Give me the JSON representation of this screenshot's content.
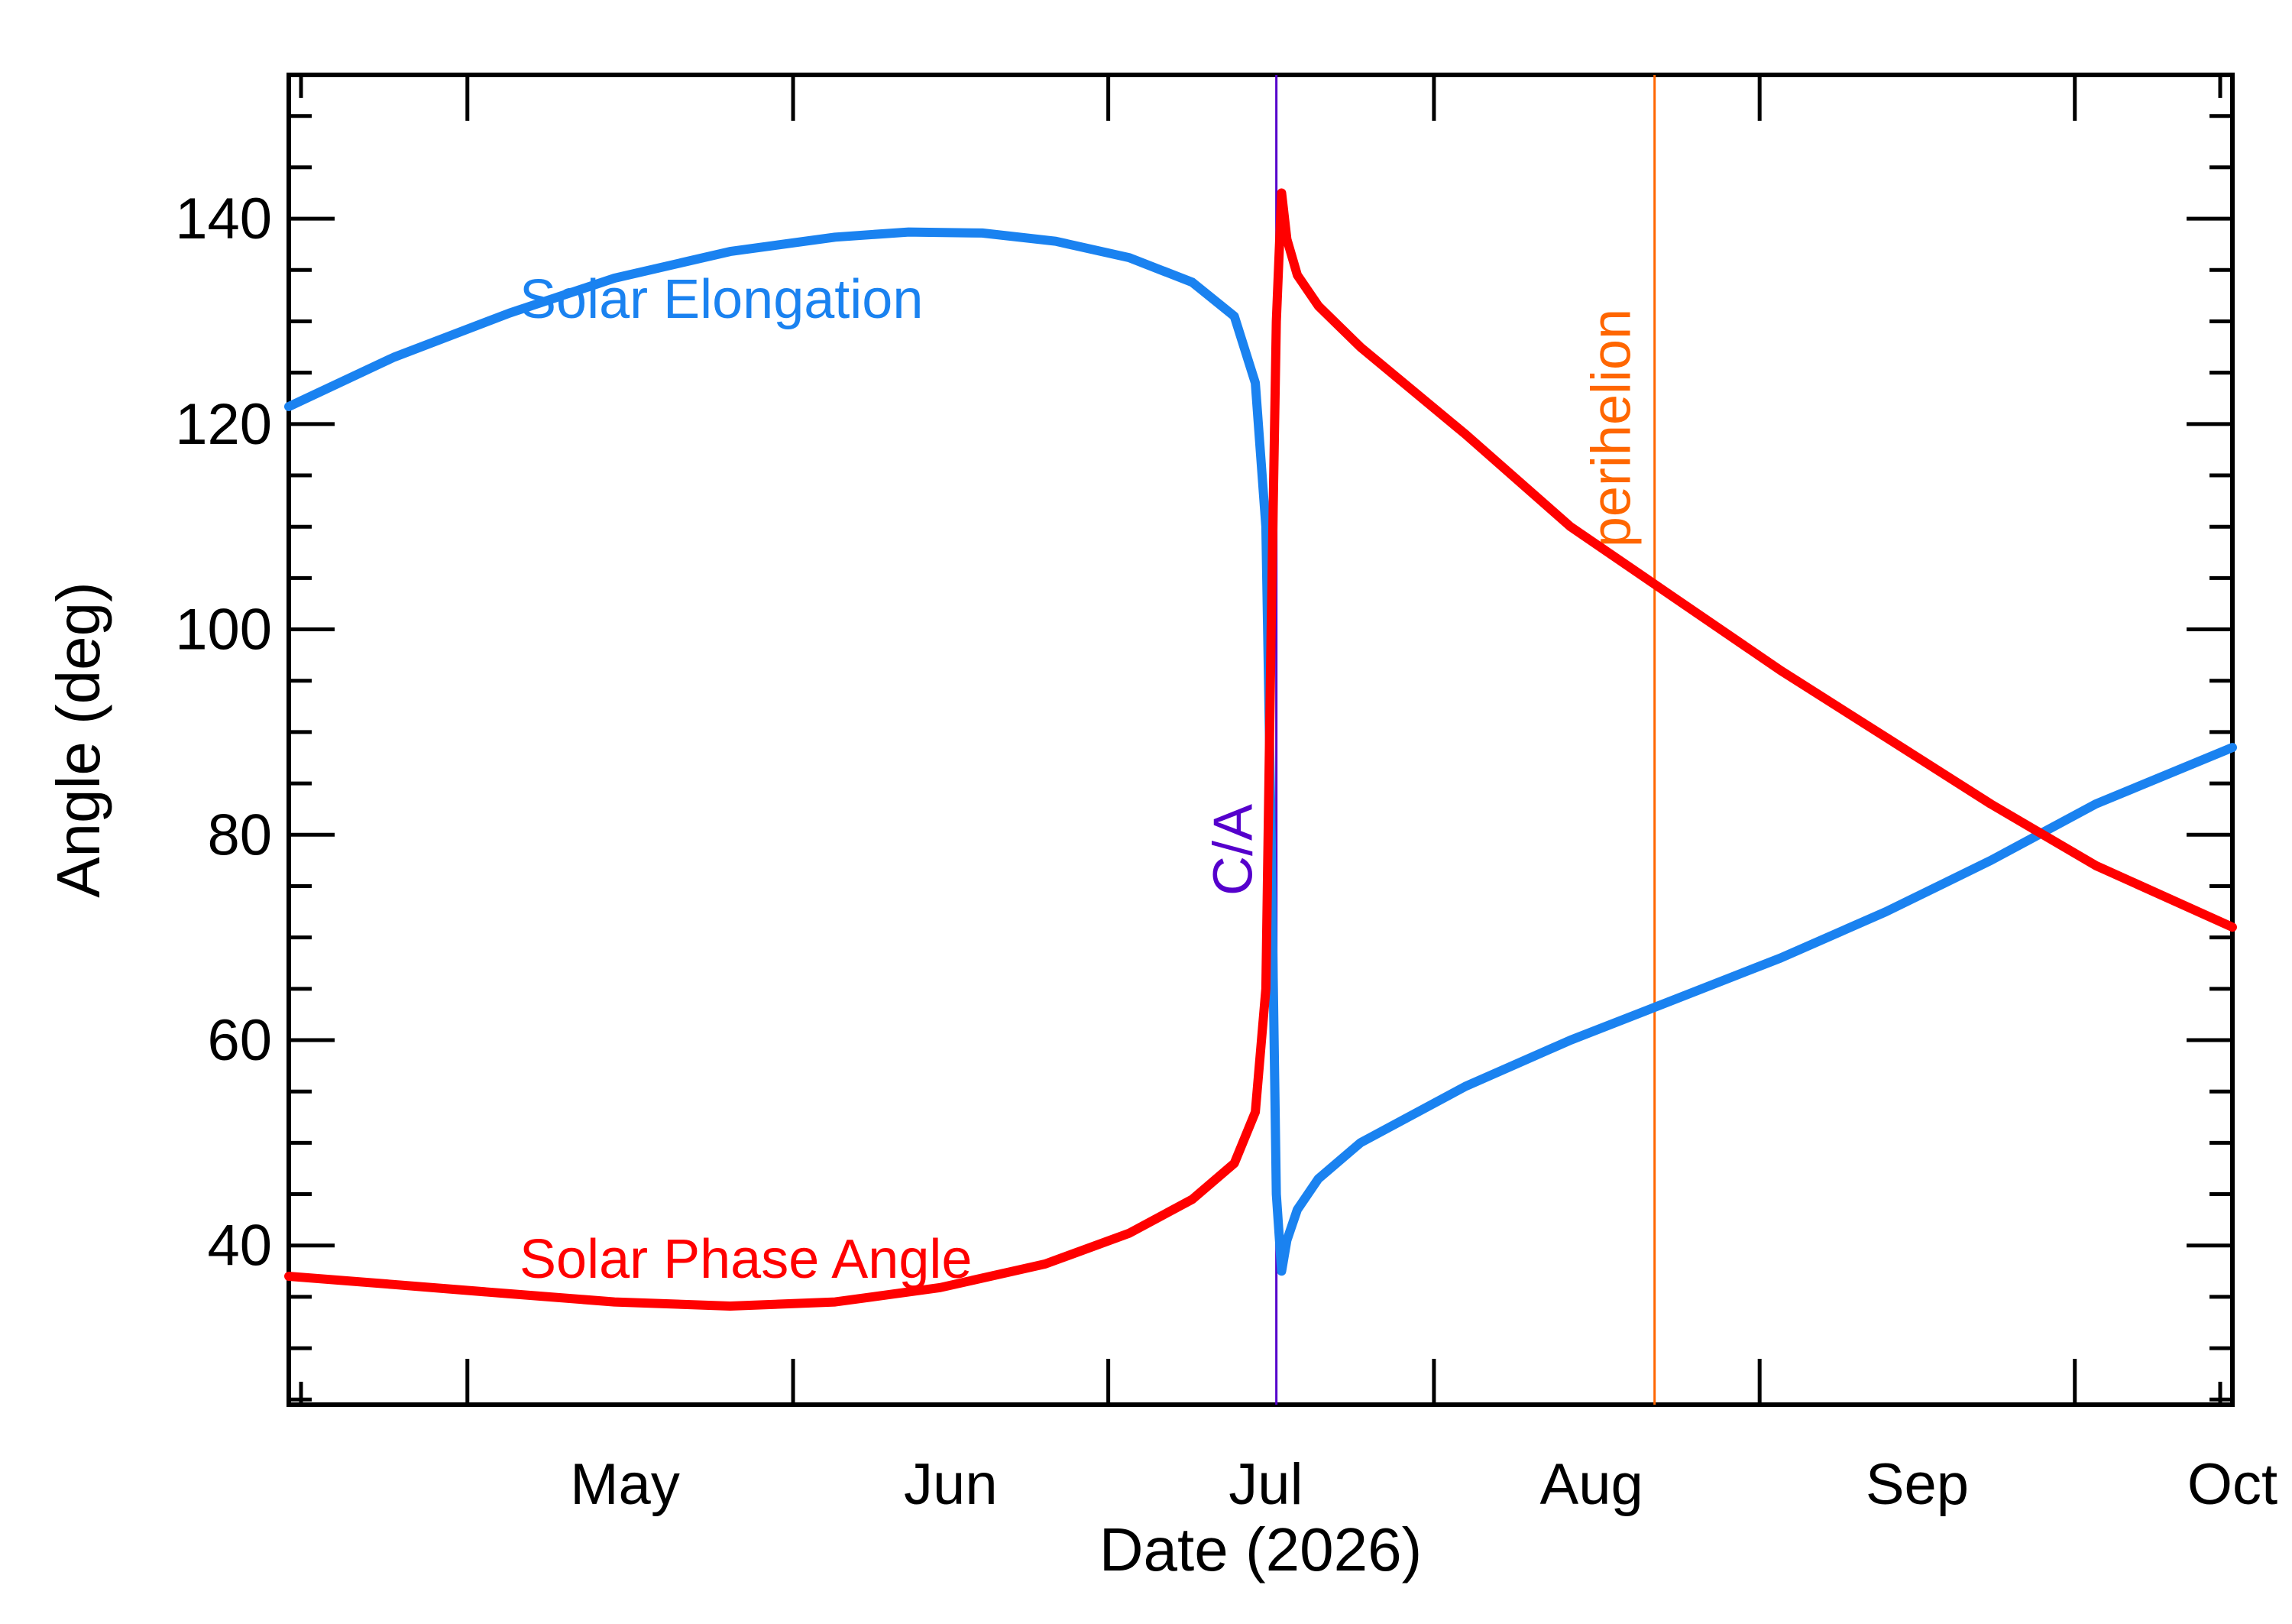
{
  "chart_data": {
    "type": "line",
    "xlabel": "Date (2026)",
    "ylabel": "Angle (deg)",
    "ylim": [
      24.5,
      154
    ],
    "xlim": [
      "2026-04-14",
      "2026-10-16"
    ],
    "x_ticks": [
      {
        "date": "2026-05-01",
        "label": "May"
      },
      {
        "date": "2026-06-01",
        "label": "Jun"
      },
      {
        "date": "2026-07-01",
        "label": "Jul"
      },
      {
        "date": "2026-08-01",
        "label": "Aug"
      },
      {
        "date": "2026-09-01",
        "label": "Sep"
      },
      {
        "date": "2026-10-01",
        "label": "Oct"
      }
    ],
    "y_ticks": [
      40,
      60,
      80,
      100,
      120,
      140
    ],
    "grid": false,
    "series": [
      {
        "name": "Solar Elongation",
        "color": "#1a82f0",
        "points": [
          [
            "2026-04-14",
            121.7
          ],
          [
            "2026-04-24",
            126.5
          ],
          [
            "2026-05-05",
            130.8
          ],
          [
            "2026-05-15",
            134.2
          ],
          [
            "2026-05-26",
            136.8
          ],
          [
            "2026-06-05",
            138.2
          ],
          [
            "2026-06-12",
            138.7
          ],
          [
            "2026-06-19",
            138.6
          ],
          [
            "2026-06-26",
            137.8
          ],
          [
            "2026-07-03",
            136.2
          ],
          [
            "2026-07-09",
            133.8
          ],
          [
            "2026-07-13",
            130.5
          ],
          [
            "2026-07-15",
            124.0
          ],
          [
            "2026-07-16",
            110.0
          ],
          [
            "2026-07-16T12:00",
            80.0
          ],
          [
            "2026-07-17",
            45.0
          ],
          [
            "2026-07-17T12:00",
            37.5
          ],
          [
            "2026-07-18",
            40.5
          ],
          [
            "2026-07-19",
            43.5
          ],
          [
            "2026-07-21",
            46.5
          ],
          [
            "2026-07-25",
            50.0
          ],
          [
            "2026-08-04",
            55.5
          ],
          [
            "2026-08-14",
            60.0
          ],
          [
            "2026-08-24",
            64.0
          ],
          [
            "2026-09-03",
            68.0
          ],
          [
            "2026-09-13",
            72.5
          ],
          [
            "2026-09-23",
            77.5
          ],
          [
            "2026-10-03",
            83.0
          ],
          [
            "2026-10-16",
            88.5
          ]
        ]
      },
      {
        "name": "Solar Phase Angle",
        "color": "#ff0000",
        "points": [
          [
            "2026-04-14",
            37.0
          ],
          [
            "2026-04-24",
            36.2
          ],
          [
            "2026-05-05",
            35.3
          ],
          [
            "2026-05-15",
            34.5
          ],
          [
            "2026-05-26",
            34.1
          ],
          [
            "2026-06-05",
            34.5
          ],
          [
            "2026-06-15",
            35.9
          ],
          [
            "2026-06-25",
            38.2
          ],
          [
            "2026-07-03",
            41.2
          ],
          [
            "2026-07-09",
            44.5
          ],
          [
            "2026-07-13",
            48.0
          ],
          [
            "2026-07-15",
            53.0
          ],
          [
            "2026-07-16",
            65.0
          ],
          [
            "2026-07-16T12:00",
            100.0
          ],
          [
            "2026-07-17",
            130.0
          ],
          [
            "2026-07-17T12:00",
            142.5
          ],
          [
            "2026-07-18",
            138.0
          ],
          [
            "2026-07-19",
            134.5
          ],
          [
            "2026-07-21",
            131.5
          ],
          [
            "2026-07-25",
            127.5
          ],
          [
            "2026-08-04",
            119.0
          ],
          [
            "2026-08-14",
            110.0
          ],
          [
            "2026-08-24",
            103.0
          ],
          [
            "2026-09-03",
            96.0
          ],
          [
            "2026-09-13",
            89.5
          ],
          [
            "2026-09-23",
            83.0
          ],
          [
            "2026-10-03",
            77.0
          ],
          [
            "2026-10-16",
            71.0
          ]
        ]
      }
    ],
    "series_labels": [
      {
        "text": "Solar Elongation",
        "color": "#1a82f0"
      },
      {
        "text": "Solar Phase Angle",
        "color": "#ff0000"
      }
    ],
    "markers": [
      {
        "label": "C/A",
        "date": "2026-07-17",
        "color": "#5500cc"
      },
      {
        "label": "perihelion",
        "date": "2026-08-22",
        "color": "#ff6600"
      }
    ]
  }
}
